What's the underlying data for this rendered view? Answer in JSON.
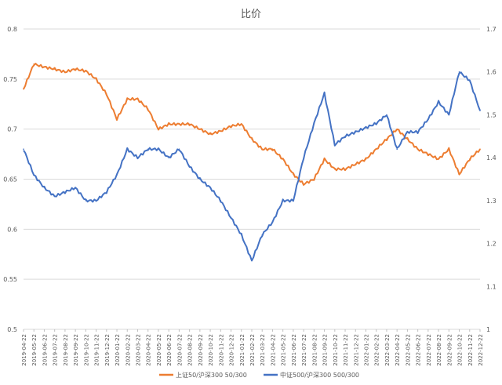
{
  "chart_data": {
    "type": "line",
    "title": "比价",
    "xlabel": "",
    "ylabel_left": "",
    "ylabel_right": "",
    "x": [
      "2019-04-22",
      "2019-05-22",
      "2019-06-22",
      "2019-07-22",
      "2019-08-22",
      "2019-09-22",
      "2019-10-22",
      "2019-11-22",
      "2019-12-22",
      "2020-01-22",
      "2020-02-22",
      "2020-03-22",
      "2020-04-22",
      "2020-05-22",
      "2020-06-22",
      "2020-07-22",
      "2020-08-22",
      "2020-09-22",
      "2020-10-22",
      "2020-11-22",
      "2020-12-22",
      "2021-01-22",
      "2021-02-22",
      "2021-03-22",
      "2021-04-22",
      "2021-05-22",
      "2021-06-22",
      "2021-07-22",
      "2021-08-22",
      "2021-09-22",
      "2021-10-22",
      "2021-11-22",
      "2021-12-22",
      "2022-01-22",
      "2022-02-22",
      "2022-03-22",
      "2022-04-22",
      "2022-05-22",
      "2022-06-22",
      "2022-07-22",
      "2022-08-22",
      "2022-09-22",
      "2022-10-22",
      "2022-11-22",
      "2022-12-22"
    ],
    "y_left": {
      "range": [
        0.5,
        0.8
      ],
      "ticks": [
        "0.5",
        "0.55",
        "0.6",
        "0.65",
        "0.7",
        "0.75",
        "0.8"
      ]
    },
    "y_right": {
      "range": [
        1,
        1.7
      ],
      "ticks": [
        "1",
        "1.1",
        "1.2",
        "1.3",
        "1.4",
        "1.5",
        "1.6",
        "1.7"
      ]
    },
    "grid": "horizontal",
    "legend_position": "bottom",
    "series": [
      {
        "name": "上证50/沪深300 50/300",
        "axis": "left",
        "color": "#ED7D31",
        "values": [
          0.74,
          0.765,
          0.762,
          0.76,
          0.757,
          0.76,
          0.758,
          0.75,
          0.735,
          0.71,
          0.73,
          0.73,
          0.72,
          0.7,
          0.705,
          0.705,
          0.705,
          0.7,
          0.695,
          0.698,
          0.703,
          0.705,
          0.69,
          0.68,
          0.68,
          0.67,
          0.655,
          0.645,
          0.65,
          0.67,
          0.66,
          0.66,
          0.665,
          0.67,
          0.68,
          0.69,
          0.7,
          0.69,
          0.68,
          0.675,
          0.67,
          0.68,
          0.655,
          0.67,
          0.68
        ]
      },
      {
        "name": "中证500/沪深300 500/300",
        "axis": "right",
        "color": "#4472C4",
        "values": [
          1.42,
          1.36,
          1.33,
          1.31,
          1.32,
          1.33,
          1.3,
          1.3,
          1.32,
          1.36,
          1.42,
          1.4,
          1.42,
          1.42,
          1.4,
          1.42,
          1.38,
          1.35,
          1.33,
          1.3,
          1.26,
          1.22,
          1.16,
          1.22,
          1.25,
          1.3,
          1.3,
          1.4,
          1.48,
          1.55,
          1.43,
          1.45,
          1.46,
          1.47,
          1.48,
          1.5,
          1.42,
          1.46,
          1.46,
          1.49,
          1.53,
          1.5,
          1.6,
          1.58,
          1.51
        ]
      }
    ]
  }
}
